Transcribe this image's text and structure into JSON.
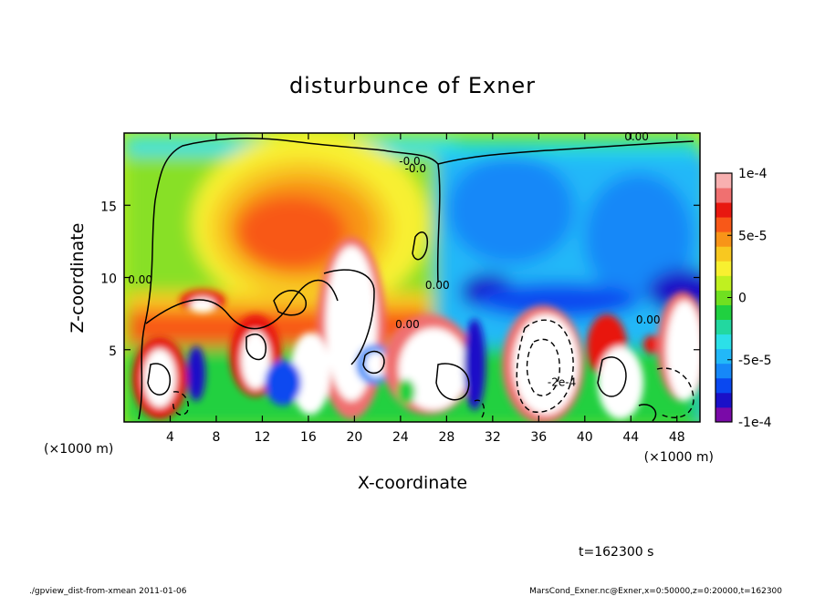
{
  "chart_data": {
    "type": "heatmap",
    "title": "disturbunce of Exner",
    "xlabel": "X-coordinate",
    "ylabel": "Z-coordinate",
    "x_unit_label": "(×1000 m)",
    "x_unit_label_lower": "(×1000 m)",
    "xlim": [
      0,
      50
    ],
    "ylim": [
      0,
      20
    ],
    "x_ticks": [
      4,
      8,
      12,
      16,
      20,
      24,
      28,
      32,
      36,
      40,
      44,
      48
    ],
    "y_ticks": [
      5,
      10,
      15
    ],
    "colorbar": {
      "range": [
        -0.0001,
        0.0001
      ],
      "tick_labels": [
        "1e-4",
        "5e-5",
        "0",
        "-5e-5",
        "-1e-4"
      ],
      "tick_values": [
        0.0001,
        5e-05,
        0,
        -5e-05,
        -0.0001
      ],
      "colors": [
        "#7a0aa8",
        "#1a10c8",
        "#0a48f0",
        "#1688f8",
        "#22b8f8",
        "#2ce0e8",
        "#22d8a0",
        "#20d040",
        "#70e020",
        "#c0f020",
        "#f8f030",
        "#f8c820",
        "#f89418",
        "#f85818",
        "#e81810",
        "#f07070",
        "#f8b0b0"
      ],
      "highlight_white": "#ffffff"
    },
    "contour_labels": [
      {
        "text": "0.00",
        "x": 44.5,
        "z": 19.5
      },
      {
        "text": "0.00",
        "x": 1.4,
        "z": 9.6
      },
      {
        "text": "0.00",
        "x": 27.2,
        "z": 9.2
      },
      {
        "text": "0.00",
        "x": 24.6,
        "z": 6.5
      },
      {
        "text": "0.00",
        "x": 45.5,
        "z": 6.8
      },
      {
        "text": "-0.0",
        "x": 24.8,
        "z": 17.8
      },
      {
        "text": "-0.0",
        "x": 25.3,
        "z": 17.3
      },
      {
        "text": "-2e-4",
        "x": 38.0,
        "z": 2.5
      }
    ],
    "field_features": [
      {
        "kind": "positive_max",
        "x": 14.5,
        "z": 13.5,
        "value": 7e-05
      },
      {
        "kind": "negative_min",
        "x": 30.0,
        "z": 8.5,
        "value": -0.0001
      },
      {
        "kind": "negative_min",
        "x": 48.5,
        "z": 10.0,
        "value": -0.0001
      },
      {
        "kind": "background_negative",
        "x": 37.0,
        "z": 14.0,
        "value": -4e-05
      },
      {
        "kind": "near_zero",
        "x": 24.0,
        "z": 16.0,
        "value": 0.0
      }
    ]
  },
  "time_label": "t=162300 s",
  "footer": {
    "left": "./gpview_dist-from-xmean   2011-01-06",
    "right": "MarsCond_Exner.nc@Exner,x=0:50000,z=0:20000,t=162300"
  }
}
